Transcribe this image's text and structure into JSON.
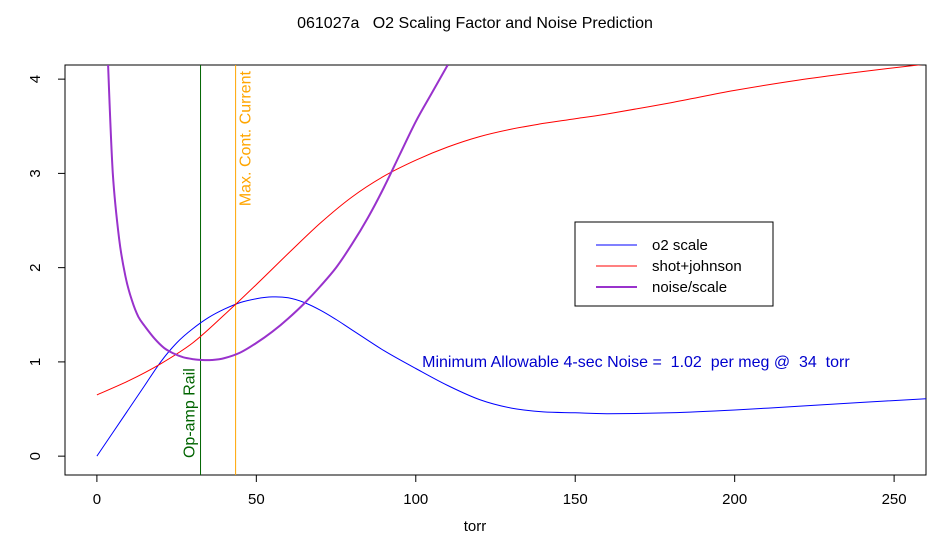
{
  "chart_data": {
    "type": "line",
    "title": "061027a   O2 Scaling Factor and Noise Prediction",
    "xlabel": "torr",
    "ylabel": "",
    "xlim": [
      -10,
      260
    ],
    "ylim": [
      -0.2,
      4.15
    ],
    "xticks": [
      0,
      50,
      100,
      150,
      200,
      250
    ],
    "yticks": [
      0,
      1,
      2,
      3,
      4
    ],
    "grid": false,
    "legend_position": "right",
    "series": [
      {
        "name": "o2 scale",
        "color": "#0000ff",
        "width": 1,
        "x": [
          0,
          5,
          10,
          15,
          20,
          25,
          30,
          35,
          40,
          45,
          50,
          55,
          60,
          65,
          70,
          75,
          80,
          90,
          100,
          110,
          120,
          130,
          140,
          150,
          160,
          180,
          200,
          220,
          240,
          260
        ],
        "y": [
          0,
          0.25,
          0.5,
          0.75,
          1.0,
          1.2,
          1.35,
          1.47,
          1.56,
          1.63,
          1.67,
          1.69,
          1.68,
          1.63,
          1.55,
          1.45,
          1.34,
          1.12,
          0.93,
          0.75,
          0.6,
          0.51,
          0.47,
          0.46,
          0.45,
          0.46,
          0.49,
          0.53,
          0.57,
          0.61
        ]
      },
      {
        "name": "shot+johnson",
        "color": "#ff0000",
        "width": 1,
        "x": [
          0,
          10,
          20,
          30,
          40,
          50,
          60,
          70,
          80,
          90,
          100,
          110,
          120,
          130,
          140,
          150,
          160,
          180,
          200,
          220,
          240,
          260
        ],
        "y": [
          0.65,
          0.8,
          0.98,
          1.2,
          1.5,
          1.82,
          2.15,
          2.47,
          2.75,
          2.97,
          3.14,
          3.28,
          3.39,
          3.47,
          3.53,
          3.58,
          3.63,
          3.75,
          3.88,
          3.99,
          4.08,
          4.16
        ]
      },
      {
        "name": "noise/scale",
        "color": "#9932cc",
        "width": 2,
        "x": [
          3.5,
          5,
          7,
          9,
          11,
          13,
          15,
          18,
          21,
          24,
          27,
          30,
          33,
          36,
          40,
          45,
          50,
          55,
          60,
          65,
          70,
          75,
          80,
          85,
          90,
          95,
          100,
          105,
          110
        ],
        "y": [
          4.15,
          3.0,
          2.3,
          1.9,
          1.65,
          1.48,
          1.38,
          1.25,
          1.15,
          1.09,
          1.05,
          1.03,
          1.02,
          1.02,
          1.04,
          1.1,
          1.2,
          1.32,
          1.46,
          1.62,
          1.8,
          2.0,
          2.25,
          2.53,
          2.85,
          3.2,
          3.55,
          3.85,
          4.15
        ]
      }
    ],
    "vlines": [
      {
        "x": 32.5,
        "color": "#006400",
        "label": "Op-amp Rail"
      },
      {
        "x": 43.5,
        "color": "#ffa500",
        "label": "Max. Cont. Current"
      }
    ],
    "annotation": {
      "text": "Minimum Allowable 4-sec Noise =  1.02  per meg @  34  torr",
      "x": 102,
      "y": 1.0,
      "color": "#0000cd"
    }
  }
}
